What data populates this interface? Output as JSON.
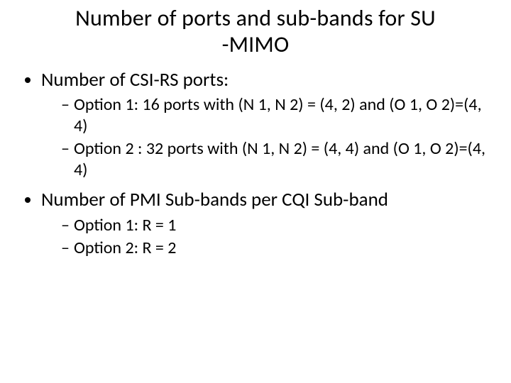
{
  "title_line1": "Number of ports and sub-bands for SU",
  "title_line2": "-MIMO",
  "bullets": [
    {
      "text": "Number of CSI-RS ports:",
      "sub": [
        "Option 1: 16 ports with (N 1, N 2) = (4, 2) and (O 1, O 2)=(4, 4)",
        "Option 2 : 32 ports with (N 1, N 2) = (4, 4) and (O 1, O 2)=(4, 4)"
      ]
    },
    {
      "text": "Number of PMI Sub-bands per CQI Sub-band",
      "sub": [
        "Option 1: R = 1",
        "Option 2: R = 2"
      ]
    }
  ]
}
